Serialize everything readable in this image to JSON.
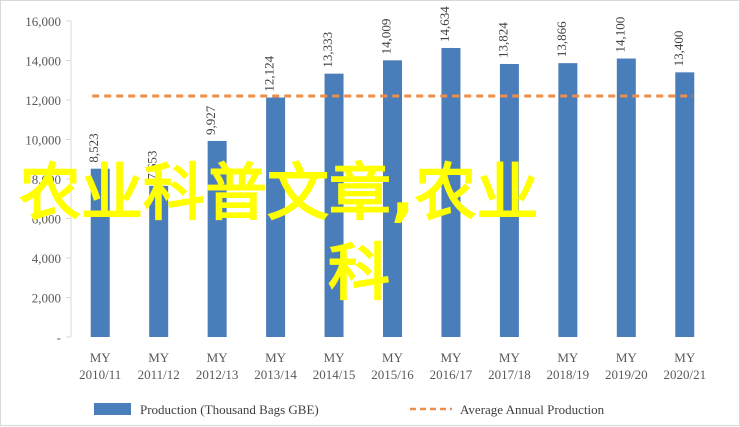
{
  "chart_data": {
    "type": "bar",
    "categories": [
      "MY 2010/11",
      "MY 2011/12",
      "MY 2012/13",
      "MY 2013/14",
      "MY 2014/15",
      "MY 2015/16",
      "MY 2016/17",
      "MY 2017/18",
      "MY 2018/19",
      "MY 2019/20",
      "MY 2020/21"
    ],
    "category_lines": [
      [
        "MY",
        "2010/11"
      ],
      [
        "MY",
        "2011/12"
      ],
      [
        "MY",
        "2012/13"
      ],
      [
        "MY",
        "2013/14"
      ],
      [
        "MY",
        "2014/15"
      ],
      [
        "MY",
        "2015/16"
      ],
      [
        "MY",
        "2016/17"
      ],
      [
        "MY",
        "2017/18"
      ],
      [
        "MY",
        "2018/19"
      ],
      [
        "MY",
        "2019/20"
      ],
      [
        "MY",
        "2020/21"
      ]
    ],
    "series": [
      {
        "name": "Production (Thousand Bags GBE)",
        "color": "#4a7ebb",
        "values": [
          8523,
          7653,
          9927,
          12124,
          13333,
          14009,
          14634,
          13824,
          13866,
          14100,
          13400
        ],
        "labels": [
          "8,523",
          "7,653",
          "9,927",
          "12,124",
          "13,333",
          "14,009",
          "14,634",
          "13,824",
          "13,866",
          "14,100",
          "13,400"
        ]
      },
      {
        "name": "Average Annual Production",
        "type": "line",
        "style": "dashed",
        "color": "#ed8f4b",
        "value": 12200
      }
    ],
    "ylim": [
      0,
      16000
    ],
    "yticks": [
      0,
      2000,
      4000,
      6000,
      8000,
      10000,
      12000,
      14000,
      16000
    ],
    "ytick_labels": [
      "-",
      "2,000",
      "4,000",
      "6,000",
      "8,000",
      "10,000",
      "12,000",
      "14,000",
      "16,000"
    ],
    "legend_position": "bottom",
    "grid": false
  },
  "overlay_text": {
    "line1": "农业科普文章,农业",
    "line2": "科",
    "color": "#ffff00"
  }
}
